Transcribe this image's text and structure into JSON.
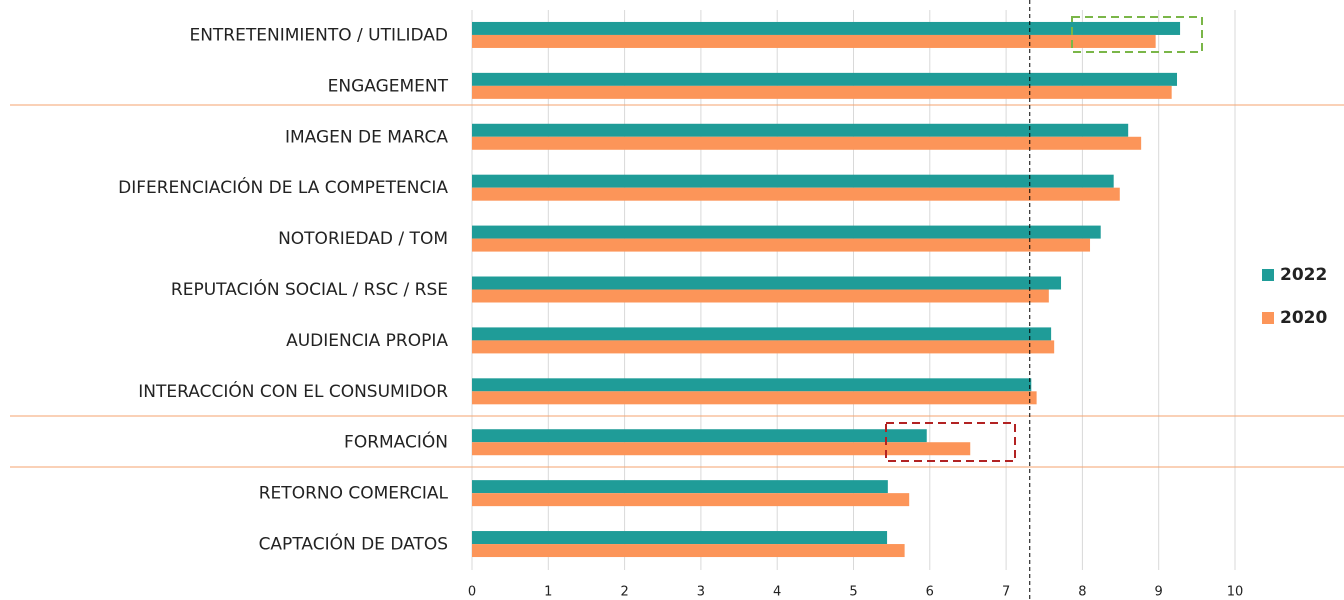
{
  "chart_data": {
    "type": "barh",
    "categories": [
      "ENTRETENIMIENTO / UTILIDAD",
      "ENGAGEMENT",
      "IMAGEN DE MARCA",
      "DIFERENCIACIÓN DE LA COMPETENCIA",
      "NOTORIEDAD / TOM",
      "REPUTACIÓN SOCIAL / RSC / RSE",
      "AUDIENCIA PROPIA",
      "INTERACCIÓN CON EL CONSUMIDOR",
      "FORMACIÓN",
      "RETORNO COMERCIAL",
      "CAPTACIÓN DE DATOS"
    ],
    "series": [
      {
        "name": "2022",
        "color": "#1f9c98",
        "values": [
          9.28,
          9.24,
          8.6,
          8.41,
          8.24,
          7.72,
          7.59,
          7.33,
          5.96,
          5.45,
          5.44
        ]
      },
      {
        "name": "2020",
        "color": "#fc9559",
        "values": [
          8.96,
          9.17,
          8.77,
          8.49,
          8.1,
          7.56,
          7.63,
          7.4,
          6.53,
          5.73,
          5.67
        ]
      }
    ],
    "xlim": [
      0,
      10
    ],
    "xticks": [
      0,
      1,
      2,
      3,
      4,
      5,
      6,
      7,
      8,
      9,
      10
    ],
    "grid": true,
    "reference_line": 7.31,
    "legend": "right"
  }
}
